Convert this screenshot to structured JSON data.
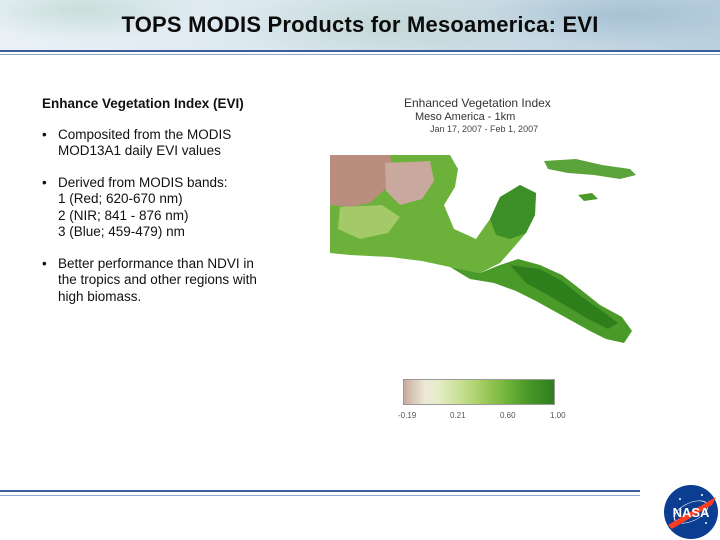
{
  "slide": {
    "title": "TOPS MODIS Products for Mesoamerica: EVI"
  },
  "content": {
    "heading": "Enhance Vegetation Index (EVI)",
    "bullets": [
      {
        "lines": [
          "Composited from the MODIS",
          "MOD13A1 daily EVI values"
        ]
      },
      {
        "lines": [
          "Derived from MODIS bands:",
          "1 (Red; 620-670 nm)",
          "2 (NIR; 841 - 876 nm)",
          "3 (Blue; 459-479) nm"
        ]
      },
      {
        "lines": [
          "Better performance than NDVI in",
          "the tropics and other regions with",
          "high biomass."
        ]
      }
    ]
  },
  "figure": {
    "title": "Enhanced Vegetation Index",
    "subtitle": "Meso America - 1km",
    "date_range": "Jan 17, 2007 - Feb 1, 2007",
    "legend_ticks": [
      "-0.19",
      "0.21",
      "0.60",
      "1.00"
    ]
  },
  "footer": {
    "logo_text": "NASA"
  },
  "colors": {
    "rule": "#3c5e9a",
    "vegetation_dark": "#2d7f1c",
    "vegetation_mid": "#6cb13a",
    "arid": "#c9a99e",
    "nasa_blue": "#0b3d91",
    "nasa_red": "#fc3d21"
  }
}
